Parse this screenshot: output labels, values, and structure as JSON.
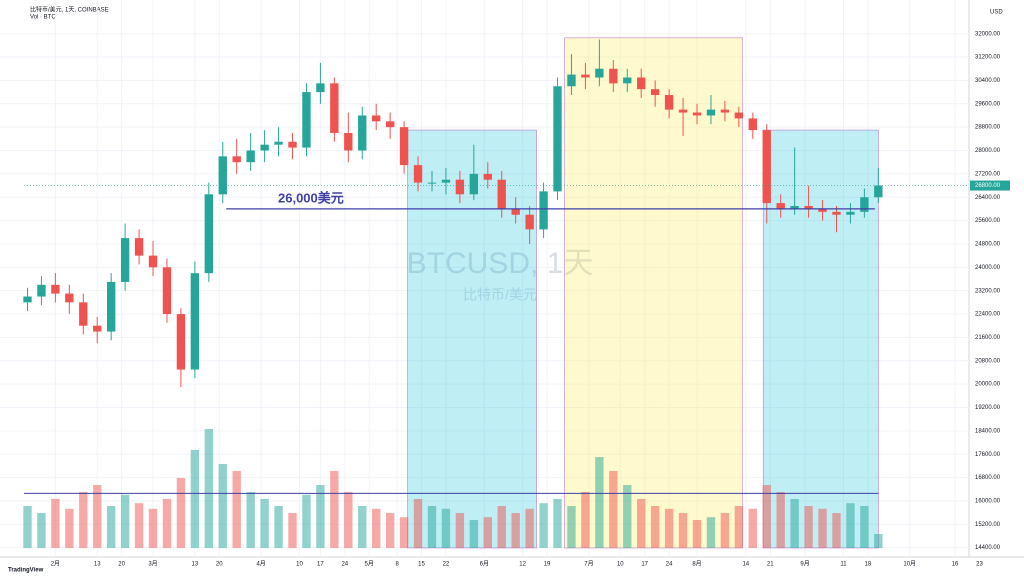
{
  "chart_data": {
    "type": "candlestick",
    "title": "比特币/美元, 1天, COINBASE",
    "volume_title": "Vol · BTC",
    "watermark": "BTCUSD, 1天",
    "watermark_sub": "比特币/美元",
    "axis_unit": "USD",
    "x": [
      0,
      4,
      8,
      12,
      16,
      20,
      24,
      28,
      32,
      36,
      40,
      44,
      48,
      52,
      56,
      60,
      64,
      68,
      72,
      76,
      80,
      84,
      88,
      92,
      96,
      100,
      104,
      108,
      112,
      116,
      120,
      124,
      128,
      132,
      136,
      140,
      144,
      148,
      152,
      156,
      160,
      164,
      168,
      172,
      176,
      180,
      184,
      188,
      192,
      196,
      200,
      204,
      208,
      212,
      216,
      220,
      224,
      228,
      232,
      236,
      240,
      244
    ],
    "open": [
      22800,
      23000,
      23400,
      23100,
      22800,
      22000,
      21800,
      23500,
      25000,
      24400,
      24000,
      22400,
      20500,
      23800,
      26500,
      27800,
      27600,
      28000,
      28200,
      28300,
      28100,
      30000,
      30300,
      28600,
      28000,
      29200,
      29000,
      28800,
      27500,
      26900,
      26900,
      27000,
      26500,
      27200,
      27000,
      26000,
      25800,
      25300,
      26600,
      30200,
      30600,
      30500,
      30800,
      30300,
      30500,
      30100,
      29900,
      29400,
      29300,
      29200,
      29400,
      29300,
      29100,
      28700,
      26200,
      26000,
      26100,
      26000,
      25900,
      25800,
      25900,
      26400
    ],
    "high": [
      23300,
      23700,
      23800,
      23400,
      23100,
      22300,
      23800,
      25500,
      25300,
      24900,
      24300,
      22600,
      24200,
      26900,
      28300,
      28400,
      28600,
      28700,
      28800,
      28600,
      30300,
      31000,
      30500,
      29300,
      29500,
      29600,
      29300,
      29000,
      27800,
      27300,
      27400,
      27300,
      28200,
      27600,
      27300,
      26400,
      26100,
      26900,
      30500,
      31300,
      31000,
      31800,
      31100,
      30800,
      30800,
      30400,
      30100,
      29800,
      29600,
      29900,
      29700,
      29500,
      29300,
      28900,
      26500,
      28100,
      26800,
      26300,
      26100,
      26200,
      26700,
      27400
    ],
    "low": [
      22500,
      22700,
      22800,
      22400,
      21700,
      21400,
      21500,
      23200,
      24100,
      23700,
      22100,
      19900,
      20200,
      23500,
      26200,
      27200,
      27300,
      27600,
      27800,
      27700,
      27800,
      29600,
      28300,
      27600,
      27700,
      28700,
      28400,
      27200,
      26600,
      26600,
      26500,
      26200,
      26300,
      26700,
      25700,
      25500,
      24800,
      25000,
      26300,
      29900,
      30100,
      30200,
      30000,
      30000,
      29800,
      29500,
      29100,
      28500,
      28900,
      28900,
      29000,
      28800,
      28400,
      25500,
      25700,
      25800,
      25700,
      25600,
      25200,
      25500,
      25700,
      26200
    ],
    "close": [
      23000,
      23400,
      23100,
      22800,
      22000,
      21800,
      23500,
      25000,
      24400,
      24000,
      22400,
      20500,
      23800,
      26500,
      27800,
      27600,
      28000,
      28200,
      28300,
      28100,
      30000,
      30300,
      28600,
      28000,
      29200,
      29000,
      28800,
      27500,
      26900,
      26900,
      27000,
      26500,
      27200,
      27000,
      26000,
      25800,
      25300,
      26600,
      30200,
      30600,
      30500,
      30800,
      30300,
      30500,
      30100,
      29900,
      29400,
      29300,
      29200,
      29400,
      29300,
      29100,
      28700,
      26200,
      26000,
      26100,
      26000,
      25900,
      25800,
      25900,
      26400,
      26800
    ],
    "volume": [
      30,
      25,
      35,
      28,
      40,
      45,
      30,
      38,
      32,
      28,
      35,
      50,
      70,
      85,
      60,
      55,
      40,
      35,
      30,
      25,
      38,
      45,
      55,
      40,
      30,
      28,
      25,
      22,
      35,
      30,
      28,
      25,
      20,
      22,
      30,
      25,
      28,
      32,
      35,
      30,
      40,
      65,
      55,
      45,
      35,
      30,
      28,
      25,
      20,
      22,
      25,
      30,
      28,
      45,
      40,
      35,
      30,
      28,
      25,
      32,
      30,
      10
    ],
    "vlim": [
      0,
      100
    ],
    "volume_ma": 39,
    "up_color": "#26a69a",
    "down_color": "#ef5350",
    "last_price_label": "26800.00",
    "hline": {
      "value": 26000,
      "x": [
        57,
        243
      ],
      "label": "26,000美元",
      "color": "#3f3fa8"
    },
    "highlights": [
      {
        "x": [
          109,
          146
        ],
        "top": 28700,
        "color": "#00bcd4"
      },
      {
        "x": [
          154,
          205
        ],
        "top": 31860,
        "color": "#ffeb3b"
      },
      {
        "x": [
          211,
          244
        ],
        "top": 28700,
        "color": "#00bcd4"
      }
    ],
    "xlim": [
      -1,
      270
    ],
    "xticks": [
      {
        "value": 8,
        "label": "2月"
      },
      {
        "value": 20,
        "label": "13"
      },
      {
        "value": 27,
        "label": "20"
      },
      {
        "value": 36,
        "label": "3月"
      },
      {
        "value": 48,
        "label": "13"
      },
      {
        "value": 55,
        "label": "20"
      },
      {
        "value": 67,
        "label": "4月"
      },
      {
        "value": 78,
        "label": "10"
      },
      {
        "value": 84,
        "label": "17"
      },
      {
        "value": 91,
        "label": "24"
      },
      {
        "value": 98,
        "label": "5月"
      },
      {
        "value": 106,
        "label": "8"
      },
      {
        "value": 113,
        "label": "15"
      },
      {
        "value": 120,
        "label": "22"
      },
      {
        "value": 131,
        "label": "6月"
      },
      {
        "value": 142,
        "label": "12"
      },
      {
        "value": 149,
        "label": "19"
      },
      {
        "value": 161,
        "label": "7月"
      },
      {
        "value": 170,
        "label": "10"
      },
      {
        "value": 177,
        "label": "17"
      },
      {
        "value": 184,
        "label": "24"
      },
      {
        "value": 192,
        "label": "8月"
      },
      {
        "value": 206,
        "label": "14"
      },
      {
        "value": 213,
        "label": "21"
      },
      {
        "value": 223,
        "label": "9月"
      },
      {
        "value": 234,
        "label": "11"
      },
      {
        "value": 241,
        "label": "18"
      },
      {
        "value": 253,
        "label": "10月"
      },
      {
        "value": 266,
        "label": "16"
      },
      {
        "value": 273,
        "label": "23"
      }
    ],
    "ylim": [
      14080,
      32880
    ],
    "yticks": [
      {
        "value": 14400,
        "label": "14400.00"
      },
      {
        "value": 15200,
        "label": "15200.00"
      },
      {
        "value": 16000,
        "label": "16000.00"
      },
      {
        "value": 16800,
        "label": "16800.00"
      },
      {
        "value": 17600,
        "label": "17600.00"
      },
      {
        "value": 18400,
        "label": "18400.00"
      },
      {
        "value": 19200,
        "label": "19200.00"
      },
      {
        "value": 20000,
        "label": "20000.00"
      },
      {
        "value": 20800,
        "label": "20800.00"
      },
      {
        "value": 21600,
        "label": "21600.00"
      },
      {
        "value": 22400,
        "label": "22400.00"
      },
      {
        "value": 23200,
        "label": "23200.00"
      },
      {
        "value": 24000,
        "label": "24000.00"
      },
      {
        "value": 24800,
        "label": "24800.00"
      },
      {
        "value": 25600,
        "label": "25600.00"
      },
      {
        "value": 26400,
        "label": "26400.00"
      },
      {
        "value": 27200,
        "label": "27200.00"
      },
      {
        "value": 28000,
        "label": "28000.00"
      },
      {
        "value": 28800,
        "label": "28800.00"
      },
      {
        "value": 29600,
        "label": "29600.00"
      },
      {
        "value": 30400,
        "label": "30400.00"
      },
      {
        "value": 31200,
        "label": "31200.00"
      },
      {
        "value": 32000,
        "label": "32000.00"
      }
    ],
    "grid": true,
    "footer": "TradingView"
  }
}
